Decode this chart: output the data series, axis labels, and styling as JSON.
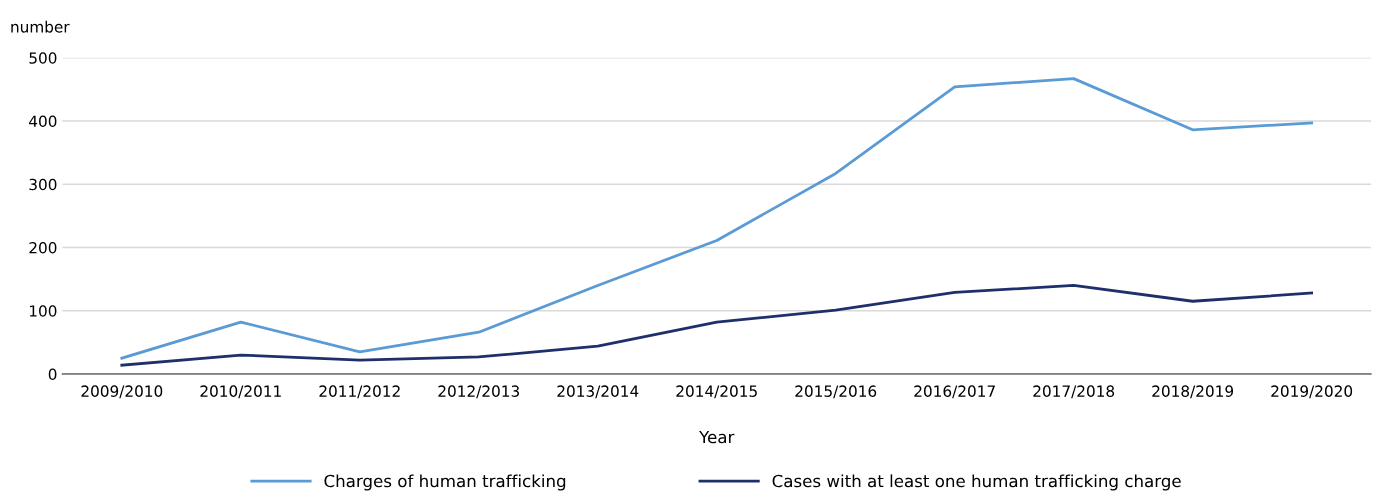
{
  "chart_data": {
    "type": "line",
    "ylabel": "number",
    "xlabel": "Year",
    "categories": [
      "2009/2010",
      "2010/2011",
      "2011/2012",
      "2012/2013",
      "2013/2014",
      "2014/2015",
      "2015/2016",
      "2016/2017",
      "2017/2018",
      "2018/2019",
      "2019/2020"
    ],
    "series": [
      {
        "name": "Charges of human trafficking",
        "color": "#5b9bd5",
        "values": [
          25,
          82,
          35,
          66,
          140,
          211,
          317,
          454,
          467,
          386,
          397
        ]
      },
      {
        "name": "Cases with at least one human trafficking charge",
        "color": "#1f2f6b",
        "values": [
          14,
          30,
          22,
          27,
          44,
          82,
          101,
          129,
          140,
          115,
          128
        ]
      }
    ],
    "ylim": [
      0,
      500
    ],
    "yticks": [
      0,
      100,
      200,
      300,
      400,
      500
    ],
    "grid": "y",
    "legend": "bottom",
    "marker": "none",
    "line_style": "solid"
  }
}
